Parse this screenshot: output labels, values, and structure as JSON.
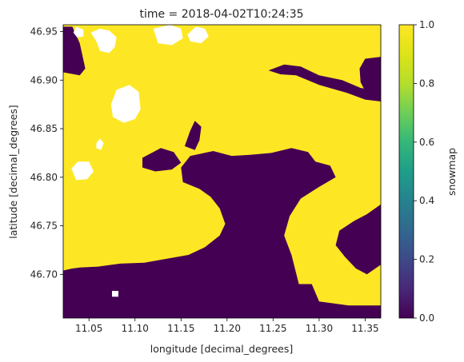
{
  "chart_data": {
    "type": "heatmap",
    "title": "time = 2018-04-02T10:24:35",
    "xlabel": "longitude [decimal_degrees]",
    "ylabel": "latitude [decimal_degrees]",
    "colorbar_label": "snowmap",
    "colormap": "viridis",
    "value_range": [
      0.0,
      1.0
    ],
    "colors": {
      "value_0": "#440154",
      "value_1": "#fde725",
      "nodata": "#ffffff"
    },
    "xlim": [
      11.022,
      11.367
    ],
    "ylim": [
      46.655,
      46.957
    ],
    "x_ticks": [
      {
        "value": 11.05,
        "label": "11.05"
      },
      {
        "value": 11.1,
        "label": "11.10"
      },
      {
        "value": 11.15,
        "label": "11.15"
      },
      {
        "value": 11.2,
        "label": "11.20"
      },
      {
        "value": 11.25,
        "label": "11.25"
      },
      {
        "value": 11.3,
        "label": "11.30"
      },
      {
        "value": 11.35,
        "label": "11.35"
      }
    ],
    "y_ticks": [
      {
        "value": 46.7,
        "label": "46.70"
      },
      {
        "value": 46.75,
        "label": "46.75"
      },
      {
        "value": 46.8,
        "label": "46.80"
      },
      {
        "value": 46.85,
        "label": "46.85"
      },
      {
        "value": 46.9,
        "label": "46.90"
      },
      {
        "value": 46.95,
        "label": "46.95"
      }
    ],
    "colorbar_ticks": [
      {
        "value": 0.0,
        "label": "0.0"
      },
      {
        "value": 0.2,
        "label": "0.2"
      },
      {
        "value": 0.4,
        "label": "0.4"
      },
      {
        "value": 0.6,
        "label": "0.6"
      },
      {
        "value": 0.8,
        "label": "0.8"
      },
      {
        "value": 1.0,
        "label": "1.0"
      }
    ],
    "regions": [
      {
        "value": 0,
        "name": "snow-free-valley",
        "polygon": [
          [
            11.022,
            46.955
          ],
          [
            11.032,
            46.955
          ],
          [
            11.04,
            46.938
          ],
          [
            11.046,
            46.912
          ],
          [
            11.04,
            46.905
          ],
          [
            11.022,
            46.908
          ]
        ]
      },
      {
        "value": 0,
        "name": "snow-free-valley",
        "polygon": [
          [
            11.022,
            46.655
          ],
          [
            11.367,
            46.655
          ],
          [
            11.367,
            46.668
          ],
          [
            11.332,
            46.668
          ],
          [
            11.3,
            46.672
          ],
          [
            11.292,
            46.69
          ],
          [
            11.278,
            46.69
          ],
          [
            11.27,
            46.72
          ],
          [
            11.262,
            46.74
          ],
          [
            11.268,
            46.76
          ],
          [
            11.28,
            46.778
          ],
          [
            11.3,
            46.79
          ],
          [
            11.318,
            46.8
          ],
          [
            11.312,
            46.812
          ],
          [
            11.296,
            46.816
          ],
          [
            11.288,
            46.826
          ],
          [
            11.27,
            46.83
          ],
          [
            11.248,
            46.825
          ],
          [
            11.225,
            46.823
          ],
          [
            11.205,
            46.822
          ],
          [
            11.185,
            46.827
          ],
          [
            11.16,
            46.822
          ],
          [
            11.15,
            46.81
          ],
          [
            11.152,
            46.795
          ],
          [
            11.17,
            46.788
          ],
          [
            11.182,
            46.78
          ],
          [
            11.192,
            46.768
          ],
          [
            11.198,
            46.752
          ],
          [
            11.192,
            46.74
          ],
          [
            11.176,
            46.728
          ],
          [
            11.158,
            46.72
          ],
          [
            11.134,
            46.716
          ],
          [
            11.11,
            46.712
          ],
          [
            11.084,
            46.711
          ],
          [
            11.06,
            46.708
          ],
          [
            11.04,
            46.707
          ],
          [
            11.032,
            46.706
          ],
          [
            11.022,
            46.704
          ]
        ]
      },
      {
        "value": 0,
        "name": "snow-free-valley",
        "polygon": [
          [
            11.245,
            46.91
          ],
          [
            11.262,
            46.916
          ],
          [
            11.28,
            46.914
          ],
          [
            11.3,
            46.905
          ],
          [
            11.325,
            46.9
          ],
          [
            11.345,
            46.892
          ],
          [
            11.367,
            46.888
          ],
          [
            11.367,
            46.878
          ],
          [
            11.35,
            46.88
          ],
          [
            11.33,
            46.887
          ],
          [
            11.3,
            46.895
          ],
          [
            11.275,
            46.905
          ],
          [
            11.258,
            46.906
          ]
        ]
      },
      {
        "value": 0,
        "name": "snow-free-valley",
        "polygon": [
          [
            11.35,
            46.922
          ],
          [
            11.367,
            46.924
          ],
          [
            11.367,
            46.88
          ],
          [
            11.352,
            46.885
          ],
          [
            11.345,
            46.898
          ],
          [
            11.344,
            46.912
          ]
        ]
      },
      {
        "value": 0,
        "name": "snow-free-valley",
        "polygon": [
          [
            11.322,
            46.745
          ],
          [
            11.338,
            46.755
          ],
          [
            11.352,
            46.762
          ],
          [
            11.367,
            46.772
          ],
          [
            11.367,
            46.71
          ],
          [
            11.352,
            46.7
          ],
          [
            11.34,
            46.706
          ],
          [
            11.328,
            46.718
          ],
          [
            11.318,
            46.73
          ]
        ]
      },
      {
        "value": 0,
        "name": "snow-free-valley",
        "polygon": [
          [
            11.108,
            46.82
          ],
          [
            11.128,
            46.83
          ],
          [
            11.142,
            46.826
          ],
          [
            11.15,
            46.815
          ],
          [
            11.14,
            46.808
          ],
          [
            11.122,
            46.806
          ],
          [
            11.108,
            46.81
          ]
        ]
      },
      {
        "value": 0,
        "name": "snow-free-valley",
        "polygon": [
          [
            11.154,
            46.832
          ],
          [
            11.16,
            46.848
          ],
          [
            11.165,
            46.858
          ],
          [
            11.172,
            46.852
          ],
          [
            11.17,
            46.838
          ],
          [
            11.165,
            46.828
          ]
        ]
      },
      {
        "value": null,
        "name": "cloud",
        "polygon": [
          [
            11.036,
            46.955
          ],
          [
            11.044,
            46.952
          ],
          [
            11.044,
            46.945
          ],
          [
            11.037,
            46.944
          ],
          [
            11.033,
            46.949
          ]
        ]
      },
      {
        "value": null,
        "name": "cloud",
        "polygon": [
          [
            11.052,
            46.949
          ],
          [
            11.062,
            46.953
          ],
          [
            11.072,
            46.951
          ],
          [
            11.08,
            46.944
          ],
          [
            11.078,
            46.934
          ],
          [
            11.072,
            46.928
          ],
          [
            11.062,
            46.93
          ],
          [
            11.058,
            46.94
          ]
        ]
      },
      {
        "value": null,
        "name": "cloud",
        "polygon": [
          [
            11.12,
            46.953
          ],
          [
            11.138,
            46.957
          ],
          [
            11.15,
            46.953
          ],
          [
            11.152,
            46.943
          ],
          [
            11.14,
            46.936
          ],
          [
            11.125,
            46.938
          ]
        ]
      },
      {
        "value": null,
        "name": "cloud",
        "polygon": [
          [
            11.074,
            46.875
          ],
          [
            11.08,
            46.89
          ],
          [
            11.094,
            46.895
          ],
          [
            11.104,
            46.888
          ],
          [
            11.106,
            46.87
          ],
          [
            11.1,
            46.86
          ],
          [
            11.088,
            46.856
          ],
          [
            11.076,
            46.862
          ]
        ]
      },
      {
        "value": null,
        "name": "cloud",
        "polygon": [
          [
            11.031,
            46.809
          ],
          [
            11.038,
            46.816
          ],
          [
            11.05,
            46.816
          ],
          [
            11.055,
            46.806
          ],
          [
            11.048,
            46.798
          ],
          [
            11.036,
            46.797
          ]
        ]
      },
      {
        "value": null,
        "name": "cloud",
        "polygon": [
          [
            11.058,
            46.835
          ],
          [
            11.062,
            46.84
          ],
          [
            11.066,
            46.835
          ],
          [
            11.063,
            46.828
          ],
          [
            11.058,
            46.83
          ]
        ]
      },
      {
        "value": null,
        "name": "cloud",
        "polygon": [
          [
            11.157,
            46.947
          ],
          [
            11.166,
            46.955
          ],
          [
            11.176,
            46.953
          ],
          [
            11.18,
            46.945
          ],
          [
            11.172,
            46.938
          ],
          [
            11.16,
            46.94
          ]
        ]
      },
      {
        "value": null,
        "name": "cloud",
        "polygon": [
          [
            11.075,
            46.677
          ],
          [
            11.075,
            46.683
          ],
          [
            11.082,
            46.683
          ],
          [
            11.082,
            46.677
          ]
        ]
      }
    ]
  }
}
